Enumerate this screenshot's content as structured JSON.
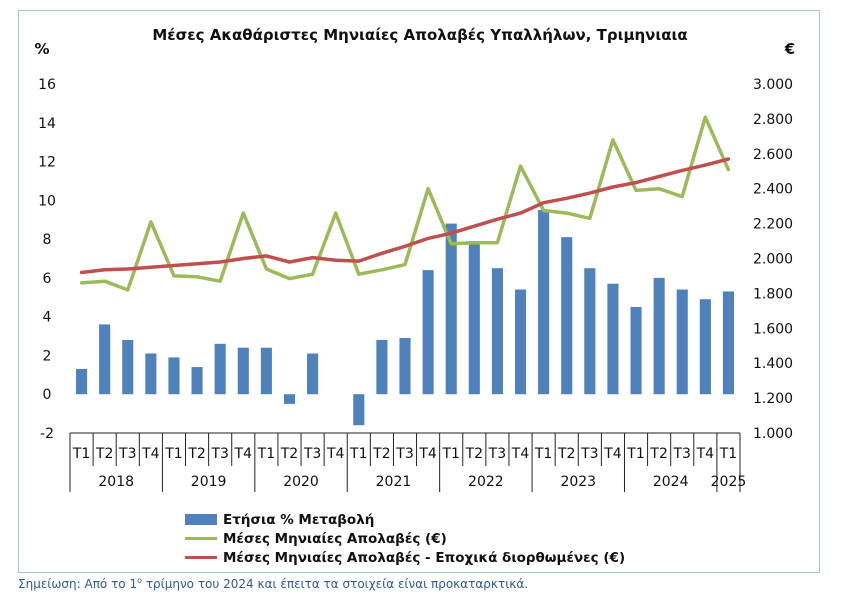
{
  "chart_data": {
    "type": "bar+line",
    "title": "Μέσες Ακαθάριστες Μηνιαίες Απολαβές Υπαλλήλων, Τριμηνιαια",
    "y_left_label": "%",
    "y_right_label": "€",
    "y_left_ticks": [
      "-2",
      "0",
      "2",
      "4",
      "6",
      "8",
      "10",
      "12",
      "14",
      "16"
    ],
    "y_right_ticks": [
      "1.000",
      "1.200",
      "1.400",
      "1.600",
      "1.800",
      "2.000",
      "2.200",
      "2.400",
      "2.600",
      "2.800",
      "3.000"
    ],
    "ylim_left": [
      -2,
      16
    ],
    "ylim_right": [
      1000,
      3000
    ],
    "quarters": [
      "T1",
      "T2",
      "T3",
      "T4",
      "T1",
      "T2",
      "T3",
      "T4",
      "T1",
      "T2",
      "T3",
      "T4",
      "T1",
      "T2",
      "T3",
      "T4",
      "T1",
      "T2",
      "T3",
      "T4",
      "T1",
      "T2",
      "T3",
      "T4",
      "T1",
      "T2",
      "T3",
      "T4",
      "T1"
    ],
    "years": [
      {
        "label": "2018",
        "span": 4
      },
      {
        "label": "2019",
        "span": 4
      },
      {
        "label": "2020",
        "span": 4
      },
      {
        "label": "2021",
        "span": 4
      },
      {
        "label": "2022",
        "span": 4
      },
      {
        "label": "2023",
        "span": 4
      },
      {
        "label": "2024",
        "span": 4
      },
      {
        "label": "2025",
        "span": 1
      }
    ],
    "series": [
      {
        "name": "Ετήσια % Μεταβολή",
        "kind": "bar",
        "axis": "left",
        "color": "#4f81bd",
        "values": [
          1.3,
          3.6,
          2.8,
          2.1,
          1.9,
          1.4,
          2.6,
          2.4,
          2.4,
          -0.5,
          2.1,
          0.0,
          -1.6,
          2.8,
          2.9,
          6.4,
          8.8,
          7.9,
          6.5,
          5.4,
          9.5,
          8.1,
          6.5,
          5.7,
          4.5,
          6.0,
          5.4,
          4.9,
          5.3
        ]
      },
      {
        "name": "Μέσες Μηνιαίες Απολαβές (€)",
        "kind": "line",
        "axis": "right",
        "color": "#9bbb59",
        "values": [
          1860,
          1870,
          1820,
          2210,
          1900,
          1895,
          1870,
          2260,
          1940,
          1885,
          1910,
          2260,
          1910,
          1935,
          1965,
          2400,
          2085,
          2090,
          2090,
          2530,
          2275,
          2260,
          2230,
          2680,
          2390,
          2400,
          2355,
          2810,
          2510
        ]
      },
      {
        "name": "Μέσες Μηνιαίες Απολαβές - Εποχικά διορθωμένες (€)",
        "kind": "line",
        "axis": "right",
        "color": "#c0504d",
        "values": [
          1920,
          1935,
          1940,
          1950,
          1960,
          1970,
          1980,
          2000,
          2015,
          1980,
          2005,
          1990,
          1985,
          2030,
          2070,
          2115,
          2145,
          2185,
          2225,
          2260,
          2320,
          2345,
          2375,
          2410,
          2435,
          2470,
          2505,
          2535,
          2570
        ]
      }
    ]
  },
  "note": {
    "prefix": "Σημείωση: Από το 1",
    "sup": "ο",
    "suffix": " τρίμηνο του 2024 και έπειτα τα στοιχεία είναι προκαταρκτικά."
  }
}
